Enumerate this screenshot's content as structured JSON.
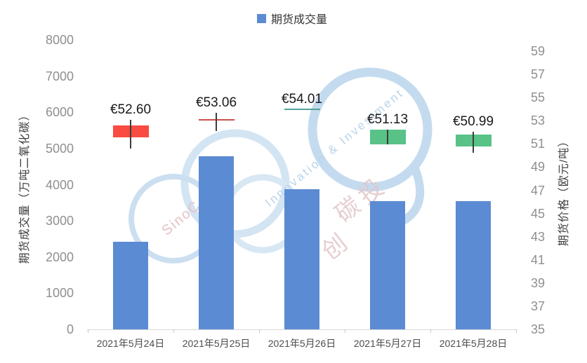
{
  "legend": {
    "label": "期货成交量"
  },
  "colors": {
    "bar": "#5B8BD2",
    "red_box": "#F94B42",
    "red_line": "#C9504C",
    "teal_line": "#52A09A",
    "green_box": "#58C287",
    "wick": "#3D3D3D",
    "axis_line": "#D9D9D9",
    "tick_text": "#8F8F8F",
    "xlabel_text": "#4D4D4D",
    "price_label_text": "#1A1A1A"
  },
  "left_axis": {
    "title": "期货成交量（万吨二氧化碳）",
    "ticks": [
      8000,
      7000,
      6000,
      5000,
      4000,
      3000,
      2000,
      1000,
      0
    ],
    "min": 0,
    "max": 8000
  },
  "right_axis": {
    "title": "期货价格（欧元/吨）",
    "ticks": [
      59,
      57,
      55,
      53,
      51,
      49,
      47,
      45,
      43,
      41,
      39,
      37,
      35
    ],
    "min": 35,
    "max": 59
  },
  "chart_data": [
    {
      "type": "bar",
      "name": "期货成交量",
      "axis": "left",
      "ylabel": "期货成交量（万吨二氧化碳）",
      "ylim": [
        0,
        8000
      ],
      "categories": [
        "2021年5月24日",
        "2021年5月25日",
        "2021年5月26日",
        "2021年5月27日",
        "2021年5月28日"
      ],
      "values": [
        2430,
        4780,
        3880,
        3540,
        3540
      ]
    },
    {
      "type": "candlestick",
      "name": "期货价格",
      "axis": "right",
      "ylabel": "期货价格（欧元/吨）",
      "ylim": [
        35,
        59
      ],
      "categories": [
        "2021年5月24日",
        "2021年5月25日",
        "2021年5月26日",
        "2021年5月27日",
        "2021年5月28日"
      ],
      "points": [
        {
          "label": "€52.60",
          "high": 53.05,
          "low": 50.6,
          "box_top": 52.6,
          "box_bottom": 51.55,
          "style": "red-box"
        },
        {
          "label": "€53.06",
          "high": 53.65,
          "low": 52.1,
          "box_top": 53.06,
          "box_bottom": 53.06,
          "style": "red-cross"
        },
        {
          "label": "€54.01",
          "high": 54.01,
          "low": 54.01,
          "box_top": 54.01,
          "box_bottom": 54.01,
          "style": "teal-line"
        },
        {
          "label": "€51.13",
          "high": 52.25,
          "low": 50.95,
          "box_top": 52.25,
          "box_bottom": 50.95,
          "style": "green-box"
        },
        {
          "label": "€50.99",
          "high": 52.05,
          "low": 50.25,
          "box_top": 51.8,
          "box_bottom": 50.8,
          "style": "green-box"
        }
      ]
    }
  ],
  "watermark": {
    "line_en_1": "Innovation & Investment",
    "line_en_2": "SinoC",
    "cn_1": "中创",
    "cn_2": "碳投"
  }
}
